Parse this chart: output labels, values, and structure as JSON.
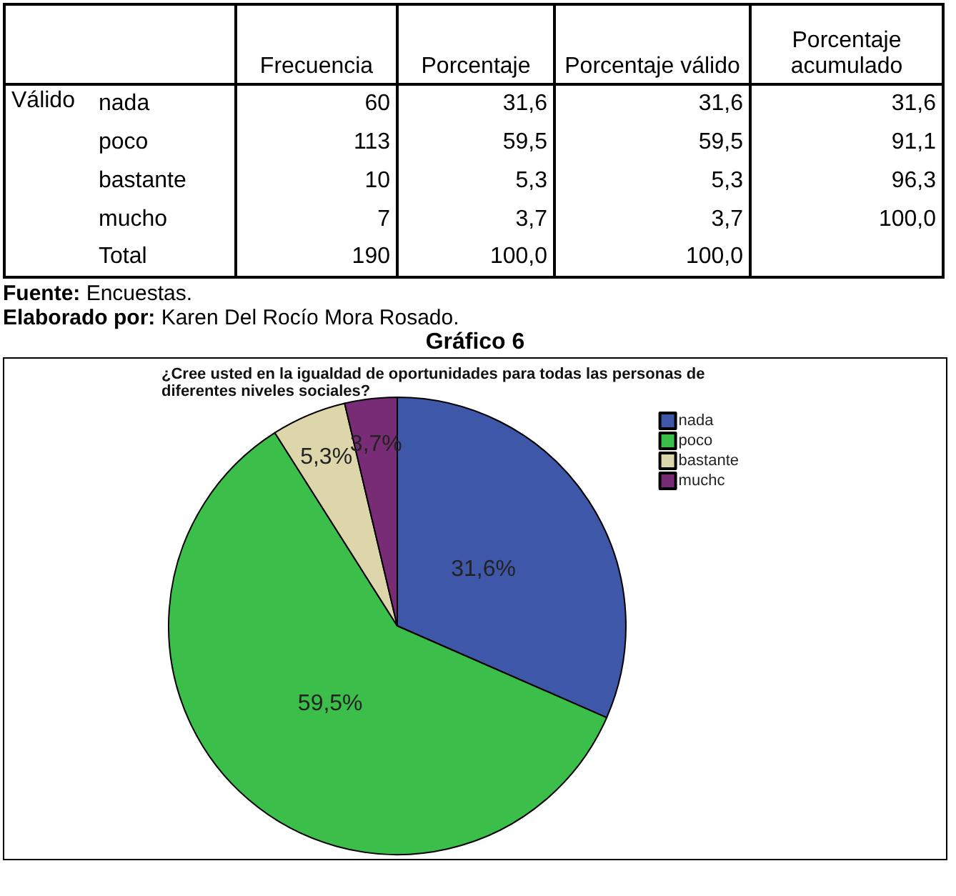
{
  "chart_data": [
    {
      "type": "other",
      "ylabel": "Válido",
      "categories": [
        "nada",
        "poco",
        "bastante",
        "mucho",
        "Total"
      ],
      "series": [
        {
          "name": "Frecuencia",
          "values": [
            60,
            113,
            10,
            7,
            190
          ]
        },
        {
          "name": "Porcentaje",
          "values": [
            31.6,
            59.5,
            5.3,
            3.7,
            100.0
          ],
          "value_labels": [
            "31,6",
            "59,5",
            "5,3",
            "3,7",
            "100,0"
          ]
        },
        {
          "name": "Porcentaje válido",
          "values": [
            31.6,
            59.5,
            5.3,
            3.7,
            100.0
          ],
          "value_labels": [
            "31,6",
            "59,5",
            "5,3",
            "3,7",
            "100,0"
          ]
        },
        {
          "name": "Porcentaje acumulado",
          "values": [
            31.6,
            91.1,
            96.3,
            100.0,
            null
          ],
          "value_labels": [
            "31,6",
            "91,1",
            "96,3",
            "100,0",
            null
          ]
        }
      ],
      "data_labels": true,
      "annotations": [
        "Fuente: Encuestas.",
        "Elaborado por: Karen Del Rocío Mora Rosado."
      ]
    },
    {
      "type": "pie",
      "title": "Gráfico 6",
      "subtitle": "¿Cree usted en la igualdad de oportunidades para todas las personas de diferentes niveles sociales?",
      "categories": [
        "nada",
        "poco",
        "bastante",
        "muchc"
      ],
      "values": [
        31.6,
        59.5,
        5.3,
        3.7
      ],
      "colors": [
        "#3f57a8",
        "#3cbf4a",
        "#dcd6aa",
        "#782c75"
      ],
      "value_labels": [
        "31,6%",
        "59,5%",
        "5,3%",
        "3,7%"
      ],
      "legend": "top right"
    }
  ]
}
